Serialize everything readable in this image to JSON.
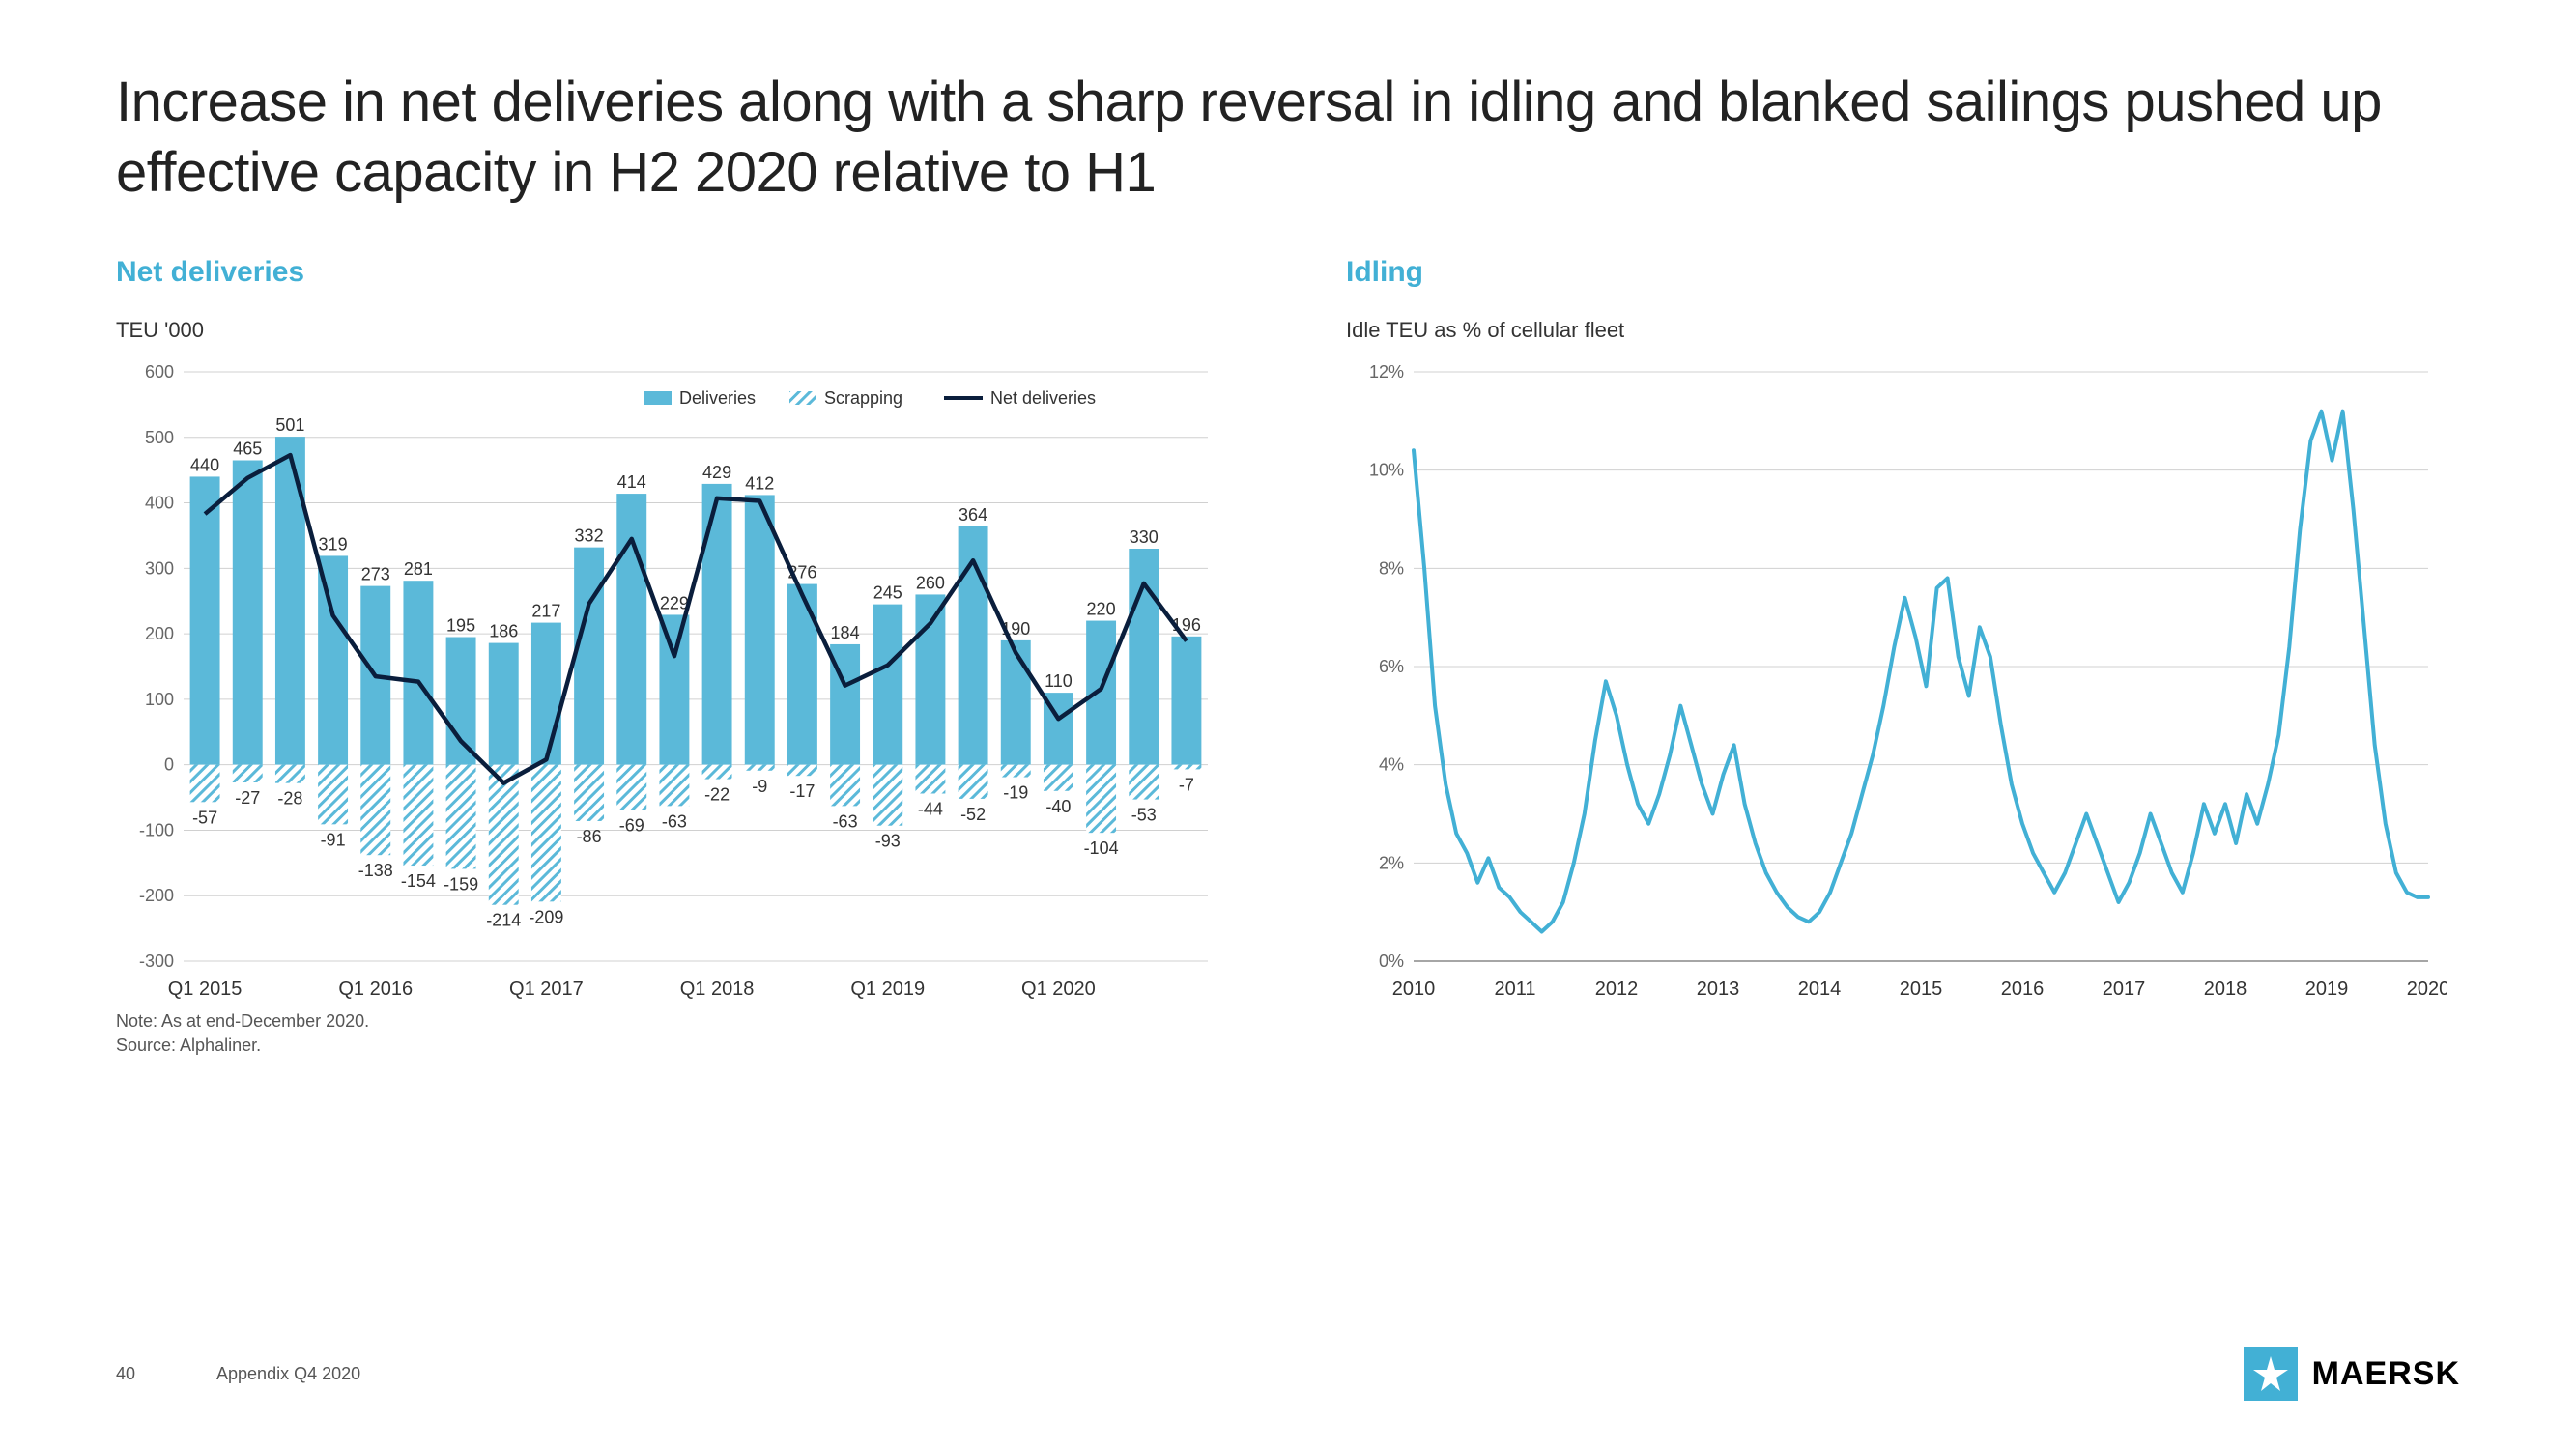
{
  "title": "Increase in net deliveries along with a sharp reversal in idling and blanked sailings pushed up effective capacity in H2 2020 relative to H1",
  "left_chart": {
    "title": "Net deliveries",
    "subtitle": "TEU '000",
    "legend": {
      "deliveries": "Deliveries",
      "scrapping": "Scrapping",
      "net": "Net deliveries"
    },
    "x_major_labels": [
      "Q1 2015",
      "Q1 2016",
      "Q1 2017",
      "Q1 2018",
      "Q1 2019",
      "Q1 2020"
    ],
    "deliveries": [
      440,
      465,
      501,
      319,
      273,
      281,
      195,
      186,
      217,
      332,
      414,
      229,
      429,
      412,
      276,
      184,
      245,
      260,
      364,
      190,
      110,
      220,
      330,
      196
    ],
    "scrapping": [
      -57,
      -27,
      -28,
      -91,
      -138,
      -154,
      -159,
      -214,
      -209,
      -86,
      -69,
      -63,
      -22,
      -9,
      -17,
      -63,
      -93,
      -44,
      -52,
      -19,
      -40,
      -104,
      -53,
      -7
    ],
    "ylim_min": -300,
    "ylim_max": 600,
    "ytick_step": 100,
    "colors": {
      "deliveries": "#5bb9d9",
      "scrapping_stroke": "#5bb9d9",
      "net_line": "#0a1e3c",
      "grid": "#d6d6d6",
      "axis": "#666666"
    },
    "bar_width_ratio": 0.7
  },
  "right_chart": {
    "title": "Idling",
    "subtitle": "Idle TEU as % of cellular fleet",
    "x_labels": [
      "2010",
      "2011",
      "2012",
      "2013",
      "2014",
      "2015",
      "2016",
      "2017",
      "2018",
      "2019",
      "2020"
    ],
    "ylim_min": 0,
    "ylim_max": 12,
    "ytick_step": 2,
    "line_color": "#42b0d5",
    "grid_color": "#d6d6d6",
    "values": [
      10.4,
      8.0,
      5.2,
      3.6,
      2.6,
      2.2,
      1.6,
      2.1,
      1.5,
      1.3,
      1.0,
      0.8,
      0.6,
      0.8,
      1.2,
      2.0,
      3.0,
      4.5,
      5.7,
      5.0,
      4.0,
      3.2,
      2.8,
      3.4,
      4.2,
      5.2,
      4.4,
      3.6,
      3.0,
      3.8,
      4.4,
      3.2,
      2.4,
      1.8,
      1.4,
      1.1,
      0.9,
      0.8,
      1.0,
      1.4,
      2.0,
      2.6,
      3.4,
      4.2,
      5.2,
      6.4,
      7.4,
      6.6,
      5.6,
      7.6,
      7.8,
      6.2,
      5.4,
      6.8,
      6.2,
      4.8,
      3.6,
      2.8,
      2.2,
      1.8,
      1.4,
      1.8,
      2.4,
      3.0,
      2.4,
      1.8,
      1.2,
      1.6,
      2.2,
      3.0,
      2.4,
      1.8,
      1.4,
      2.2,
      3.2,
      2.6,
      3.2,
      2.4,
      3.4,
      2.8,
      3.6,
      4.6,
      6.4,
      8.8,
      10.6,
      11.2,
      10.2,
      11.2,
      9.2,
      6.8,
      4.4,
      2.8,
      1.8,
      1.4,
      1.3,
      1.3
    ]
  },
  "footnote_line1": "Note: As at end-December 2020.",
  "footnote_line2": "Source: Alphaliner.",
  "page_number": "40",
  "page_label": "Appendix Q4 2020",
  "brand": "MAERSK"
}
